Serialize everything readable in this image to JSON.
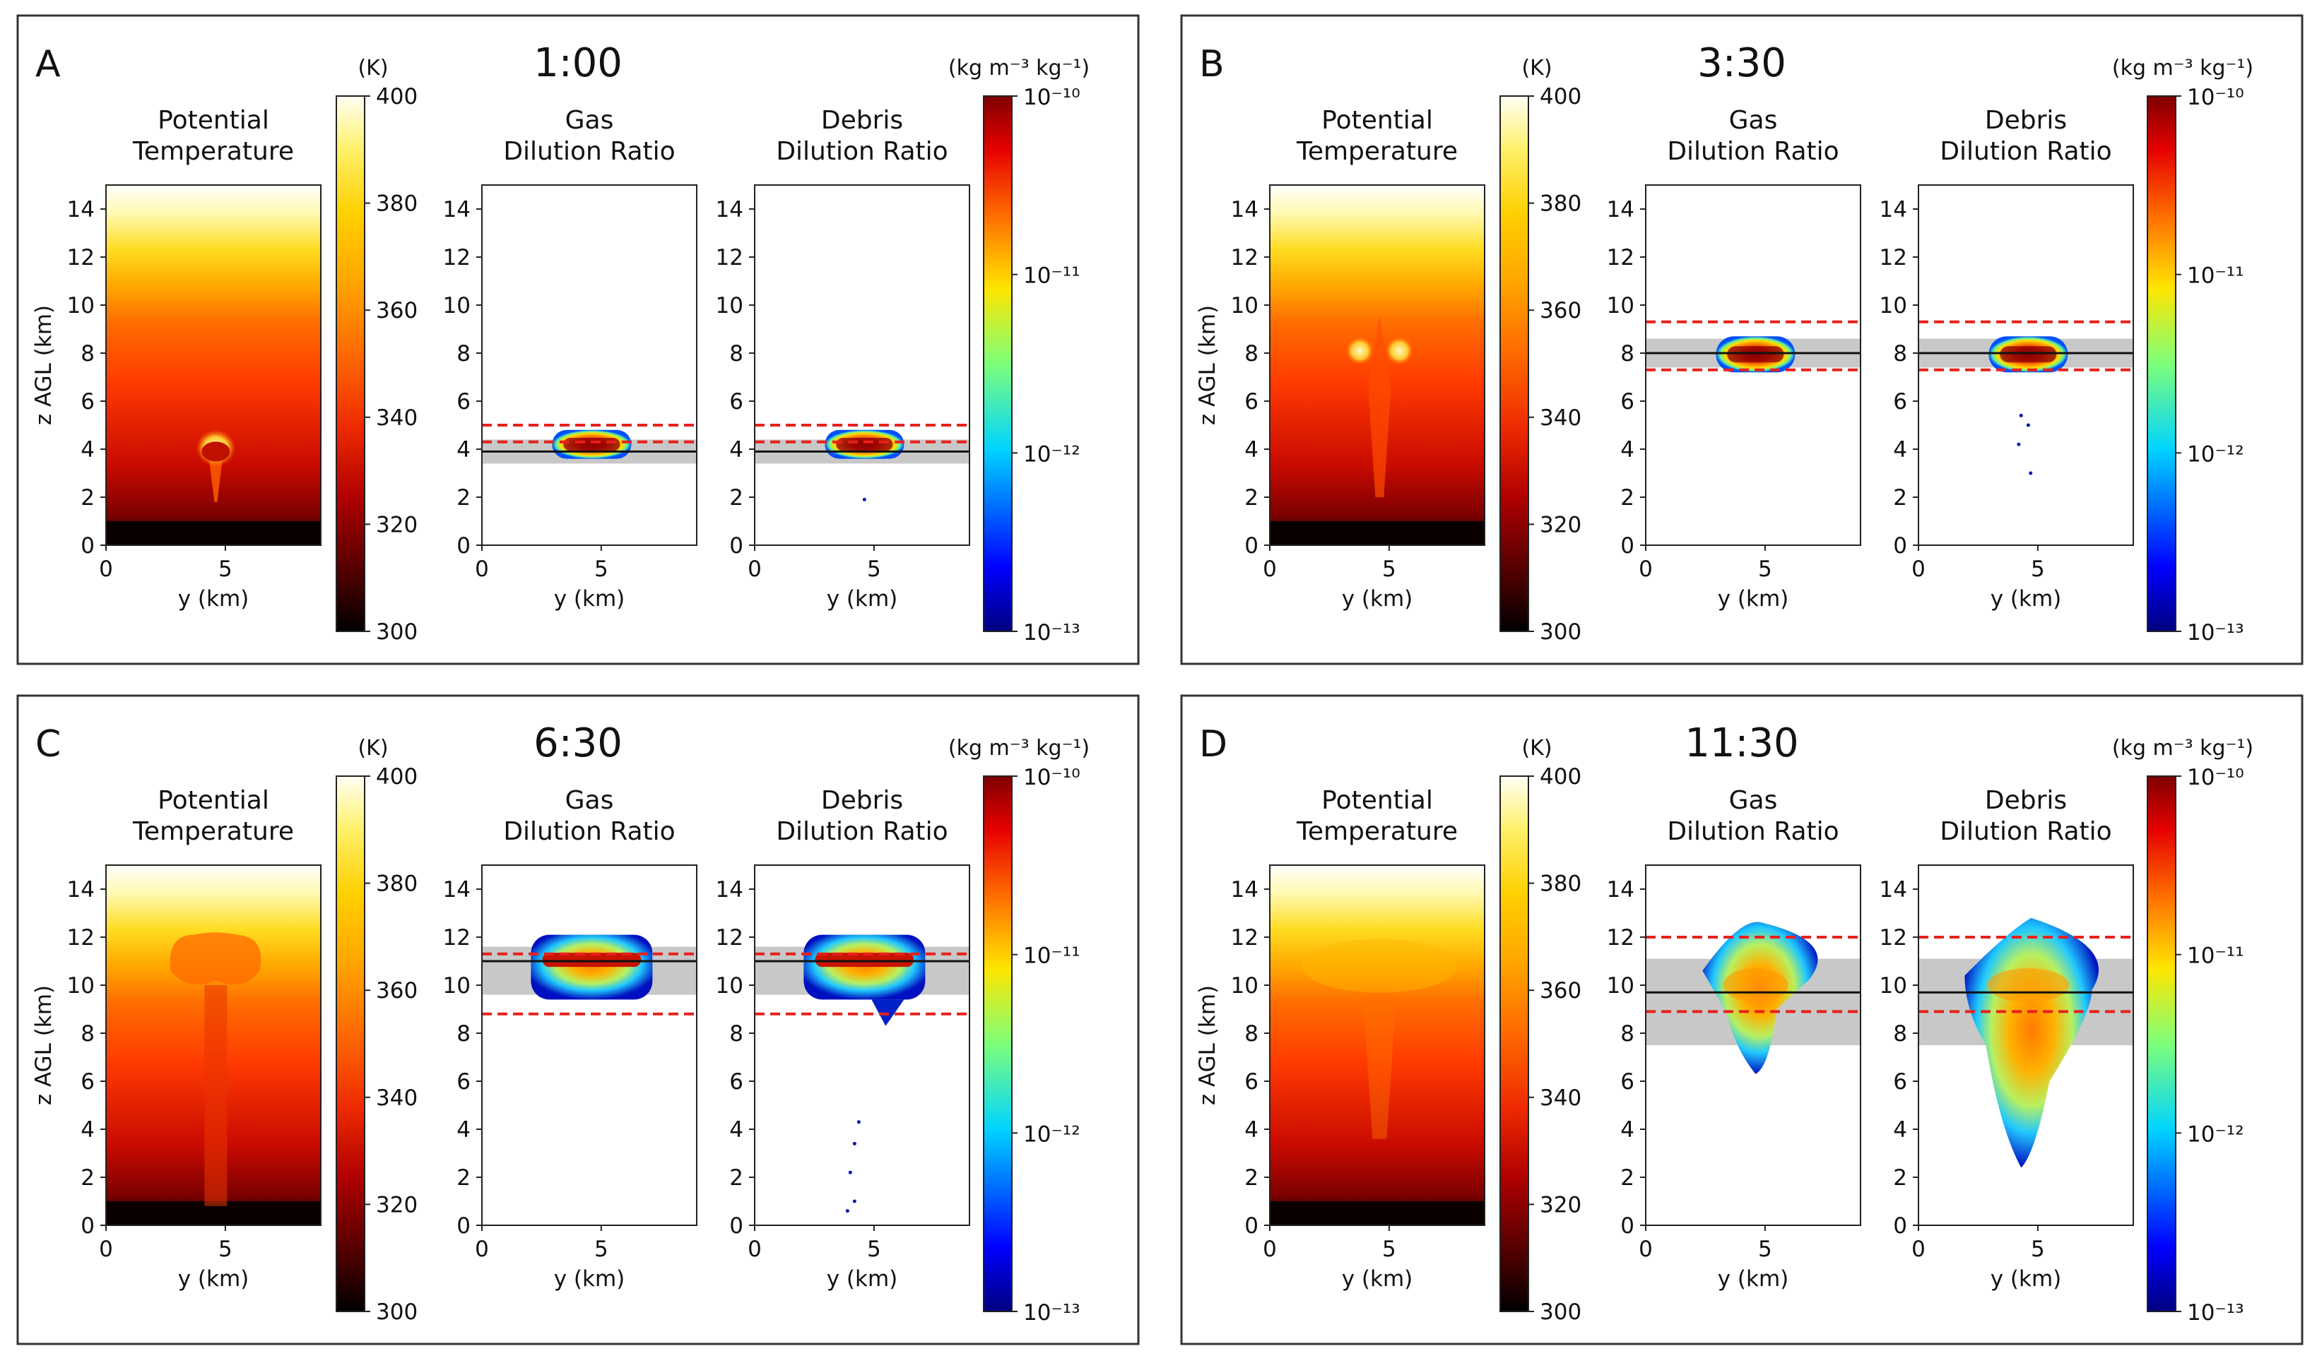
{
  "figure": {
    "axis_labels": {
      "x": "y (km)",
      "y": "z AGL (km)"
    },
    "panel_titles": {
      "potential_temperature": [
        "Potential",
        "Temperature"
      ],
      "gas": [
        "Gas",
        "Dilution Ratio"
      ],
      "debris": [
        "Debris",
        "Dilution Ratio"
      ]
    },
    "colorbars": {
      "temperature": {
        "unit": "(K)",
        "ticks": [
          "400",
          "380",
          "360",
          "340",
          "320",
          "300"
        ],
        "range": [
          300,
          400
        ]
      },
      "dilution": {
        "unit": "(kg m⁻³ kg⁻¹)",
        "ticks": [
          "10⁻¹⁰",
          "10⁻¹¹",
          "10⁻¹²",
          "10⁻¹³"
        ],
        "log_range": [
          -13,
          -10
        ]
      }
    },
    "colors": {
      "frame": "#333333",
      "red_dash": "#e8201c",
      "band": "#c8c8c8",
      "centerline": "#111111"
    }
  },
  "chart_data": [
    {
      "type": "heatmap",
      "panel": "A",
      "time": "1:00",
      "xlabel": "y (km)",
      "ylabel": "z AGL (km)",
      "xlim": [
        0,
        9
      ],
      "ylim": [
        0,
        15
      ],
      "xticks": [
        "0",
        "5"
      ],
      "yticks": [
        "0",
        "2",
        "4",
        "6",
        "8",
        "10",
        "12",
        "14"
      ],
      "plume_center_z_km": 3.9,
      "band_z_km": [
        3.4,
        4.4
      ],
      "red_dashed_z_km": [
        4.3,
        5.0
      ],
      "plume_top_km": 4.8,
      "plume_bottom_km": 3.6
    },
    {
      "type": "heatmap",
      "panel": "B",
      "time": "3:30",
      "xlabel": "y (km)",
      "ylabel": "z AGL (km)",
      "xlim": [
        0,
        9
      ],
      "ylim": [
        0,
        15
      ],
      "xticks": [
        "0",
        "5"
      ],
      "yticks": [
        "0",
        "2",
        "4",
        "6",
        "8",
        "10",
        "12",
        "14"
      ],
      "plume_center_z_km": 8.0,
      "band_z_km": [
        7.4,
        8.6
      ],
      "red_dashed_z_km": [
        7.3,
        9.3
      ],
      "plume_top_km": 8.7,
      "plume_bottom_km": 7.2
    },
    {
      "type": "heatmap",
      "panel": "C",
      "time": "6:30",
      "xlabel": "y (km)",
      "ylabel": "z AGL (km)",
      "xlim": [
        0,
        9
      ],
      "ylim": [
        0,
        15
      ],
      "xticks": [
        "0",
        "5"
      ],
      "yticks": [
        "0",
        "2",
        "4",
        "6",
        "8",
        "10",
        "12",
        "14"
      ],
      "plume_center_z_km": 11.0,
      "band_z_km": [
        9.6,
        11.6
      ],
      "red_dashed_z_km": [
        8.8,
        11.3
      ],
      "plume_top_km": 12.1,
      "plume_bottom_km": 9.4
    },
    {
      "type": "heatmap",
      "panel": "D",
      "time": "11:30",
      "xlabel": "y (km)",
      "ylabel": "z AGL (km)",
      "xlim": [
        0,
        9
      ],
      "ylim": [
        0,
        15
      ],
      "xticks": [
        "0",
        "5"
      ],
      "yticks": [
        "0",
        "2",
        "4",
        "6",
        "8",
        "10",
        "12",
        "14"
      ],
      "plume_center_z_km": 9.7,
      "band_z_km": [
        7.5,
        11.1
      ],
      "red_dashed_z_km": [
        8.9,
        12.0
      ],
      "plume_top_km": 12.8,
      "plume_bottom_km": 6.3
    }
  ]
}
